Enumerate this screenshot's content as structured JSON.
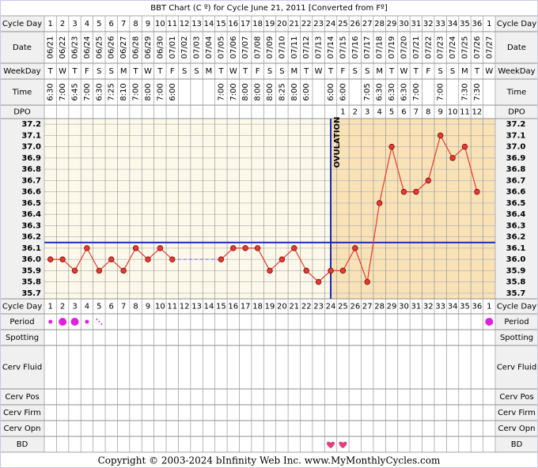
{
  "chart_data": {
    "type": "line",
    "title": "BBT Chart (C º) for Cycle June 21, 2011  [Converted from Fº]",
    "categories": [
      1,
      2,
      3,
      4,
      5,
      6,
      7,
      8,
      9,
      10,
      11,
      12,
      13,
      14,
      15,
      16,
      17,
      18,
      19,
      20,
      21,
      22,
      23,
      24,
      25,
      26,
      27,
      28,
      29,
      30,
      31,
      32,
      33,
      34,
      35,
      36,
      1
    ],
    "dates": [
      "06/21",
      "06/22",
      "06/23",
      "06/24",
      "06/25",
      "06/26",
      "06/27",
      "06/28",
      "06/29",
      "06/30",
      "07/01",
      "07/02",
      "07/03",
      "07/04",
      "07/05",
      "07/06",
      "07/07",
      "07/08",
      "07/09",
      "07/10",
      "07/11",
      "07/12",
      "07/13",
      "07/14",
      "07/15",
      "07/16",
      "07/17",
      "07/18",
      "07/19",
      "07/20",
      "07/21",
      "07/22",
      "07/23",
      "07/24",
      "07/25",
      "07/26",
      "07/27"
    ],
    "weekdays": [
      "T",
      "W",
      "T",
      "F",
      "S",
      "S",
      "M",
      "T",
      "W",
      "T",
      "F",
      "S",
      "S",
      "M",
      "T",
      "W",
      "T",
      "F",
      "S",
      "S",
      "M",
      "T",
      "W",
      "T",
      "F",
      "S",
      "S",
      "M",
      "T",
      "W",
      "T",
      "F",
      "S",
      "S",
      "M",
      "T",
      "W"
    ],
    "times": [
      "6:30",
      "7:00",
      "6:45",
      "7:00",
      "6:30",
      "7:25",
      "8:10",
      "7:00",
      "8:00",
      "7:00",
      "6:00",
      null,
      null,
      null,
      "7:00",
      "7:00",
      "8:00",
      "8:00",
      "8:00",
      "8:25",
      "8:00",
      "6:00",
      null,
      "6:00",
      "6:00",
      null,
      "7:05",
      "6:30",
      "6:30",
      "6:30",
      "7:00",
      null,
      "7:00",
      null,
      "7:30",
      "7:30",
      null
    ],
    "dpo": [
      null,
      null,
      null,
      null,
      null,
      null,
      null,
      null,
      null,
      null,
      null,
      null,
      null,
      null,
      null,
      null,
      null,
      null,
      null,
      null,
      null,
      null,
      null,
      null,
      1,
      2,
      3,
      4,
      5,
      6,
      7,
      8,
      9,
      10,
      11,
      12,
      null
    ],
    "values": [
      36.0,
      36.0,
      35.9,
      36.1,
      35.9,
      36.0,
      35.9,
      36.1,
      36.0,
      36.1,
      36.0,
      null,
      null,
      null,
      36.0,
      36.1,
      36.1,
      36.1,
      35.9,
      36.0,
      36.1,
      35.9,
      35.8,
      35.9,
      35.9,
      36.1,
      35.8,
      36.5,
      37.0,
      36.6,
      36.6,
      36.7,
      37.1,
      36.9,
      37.0,
      36.6,
      null
    ],
    "color": "#e8392f",
    "ylim": [
      35.65,
      37.25
    ],
    "yticks": [
      37.2,
      37.1,
      {
        "value": 37.0,
        "label": "37.0"
      },
      36.9,
      36.8,
      36.7,
      36.6,
      36.5,
      36.4,
      36.3,
      36.2,
      36.1,
      {
        "value": 36.0,
        "label": "36.0"
      },
      35.9,
      35.8,
      35.7
    ],
    "grid": true,
    "coverline": 36.15,
    "ovulation": {
      "label": "OVULATION",
      "cycle_day": 24
    },
    "row_labels": [
      "Cycle Day",
      "Date",
      "WeekDay",
      "Time",
      "DPO",
      "Period",
      "Spotting",
      "Cerv Fluid",
      "Cerv Pos",
      "Cerv Firm",
      "Cerv Opn",
      "BD"
    ],
    "footer": "Copyright © 2003-2024 bInfinity Web Inc.      www.MyMonthlyCycles.com"
  }
}
